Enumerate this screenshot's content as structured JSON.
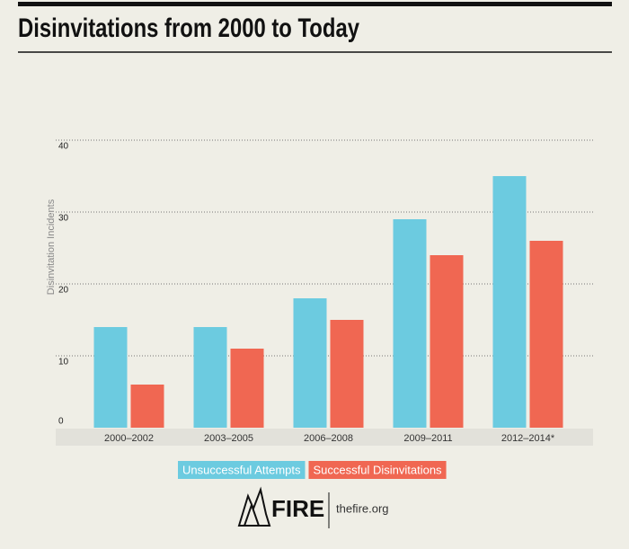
{
  "chart_data": {
    "type": "bar",
    "title": "Disinvitations from 2000 to Today",
    "ylabel": "Disinvitation Incidents",
    "categories": [
      "2000–2002",
      "2003–2005",
      "2006–2008",
      "2009–2011",
      "2012–2014*"
    ],
    "series": [
      {
        "name": "Unsuccessful Attempts",
        "color": "#6ccbe0",
        "values": [
          14,
          14,
          18,
          29,
          35
        ]
      },
      {
        "name": "Successful Disinvitations",
        "color": "#f06752",
        "values": [
          6,
          11,
          15,
          24,
          26
        ]
      }
    ],
    "ylim": [
      0,
      40
    ],
    "yticks": [
      0,
      10,
      20,
      30,
      40
    ],
    "grid": true
  },
  "footer": {
    "logo": "FIRE",
    "site": "thefire.org"
  }
}
